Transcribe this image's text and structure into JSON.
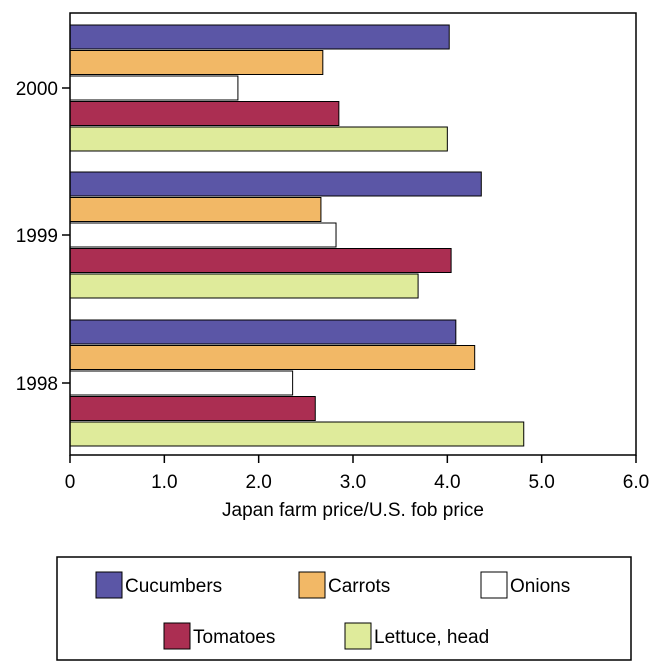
{
  "chart_data": {
    "type": "bar",
    "orientation": "horizontal",
    "categories": [
      "2000",
      "1999",
      "1998"
    ],
    "series": [
      {
        "name": "Cucumbers",
        "color": "#5b56a6",
        "values": [
          4.02,
          4.36,
          4.09
        ]
      },
      {
        "name": "Carrots",
        "color": "#f2b866",
        "values": [
          2.68,
          2.66,
          4.29
        ]
      },
      {
        "name": "Onions",
        "color": "#ffffff",
        "values": [
          1.78,
          2.82,
          2.36
        ]
      },
      {
        "name": "Tomatoes",
        "color": "#ab2e52",
        "values": [
          2.85,
          4.04,
          2.6
        ]
      },
      {
        "name": "Lettuce, head",
        "color": "#dfeb9b",
        "values": [
          4.0,
          3.69,
          4.81
        ]
      }
    ],
    "xlabel": "Japan farm price/U.S. fob price",
    "ylabel": "",
    "xlim": [
      0,
      6
    ],
    "xticks": [
      "0",
      "1.0",
      "2.0",
      "3.0",
      "4.0",
      "5.0",
      "6.0"
    ],
    "grid": false,
    "legend_position": "bottom"
  }
}
